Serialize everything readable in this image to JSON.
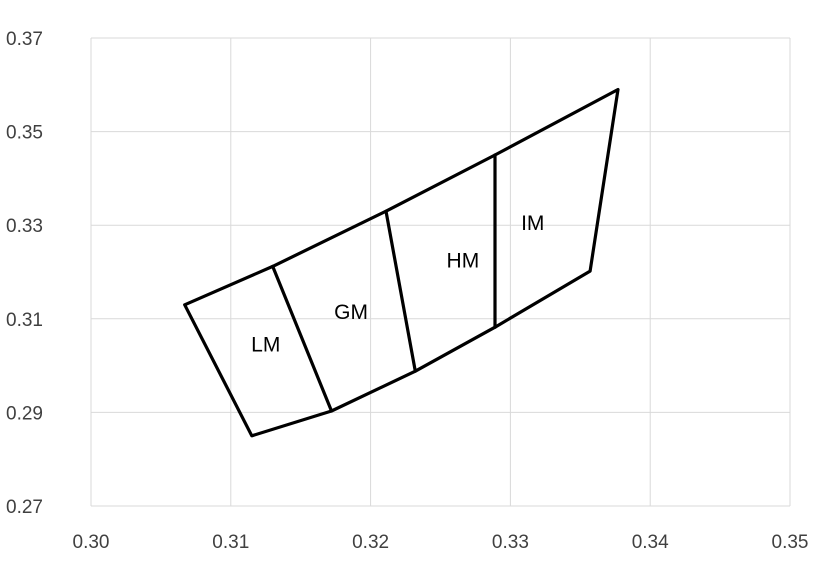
{
  "chart_data": {
    "type": "line",
    "title": "",
    "xlabel": "",
    "ylabel": "",
    "xlim": [
      0.3,
      0.35
    ],
    "ylim": [
      0.27,
      0.37
    ],
    "x_ticks": [
      "0.30",
      "0.31",
      "0.32",
      "0.33",
      "0.34",
      "0.35"
    ],
    "y_ticks": [
      "0.27",
      "0.29",
      "0.31",
      "0.33",
      "0.35",
      "0.37"
    ],
    "grid": true,
    "legend": "none",
    "line_color": "#000000",
    "grid_color": "#d9d9d9",
    "series": [
      {
        "name": "",
        "x": [
          0.3067,
          0.313,
          0.3211,
          0.3289,
          0.3377,
          0.3357,
          0.3289,
          0.3232,
          0.3172,
          0.3115,
          0.3067
        ],
        "y": [
          0.313,
          0.3212,
          0.333,
          0.345,
          0.359,
          0.3202,
          0.3082,
          0.2988,
          0.2903,
          0.285,
          0.313
        ]
      },
      {
        "name": "",
        "x": [
          0.313,
          0.3172
        ],
        "y": [
          0.3212,
          0.2903
        ]
      },
      {
        "name": "",
        "x": [
          0.3211,
          0.3232
        ],
        "y": [
          0.333,
          0.2988
        ]
      },
      {
        "name": "",
        "x": [
          0.3289,
          0.3289
        ],
        "y": [
          0.345,
          0.3082
        ]
      }
    ],
    "annotations": [
      {
        "text": "LM",
        "x": 0.3125,
        "y": 0.303
      },
      {
        "text": "GM",
        "x": 0.3186,
        "y": 0.31
      },
      {
        "text": "HM",
        "x": 0.3266,
        "y": 0.321
      },
      {
        "text": "IM",
        "x": 0.3316,
        "y": 0.329
      }
    ]
  }
}
